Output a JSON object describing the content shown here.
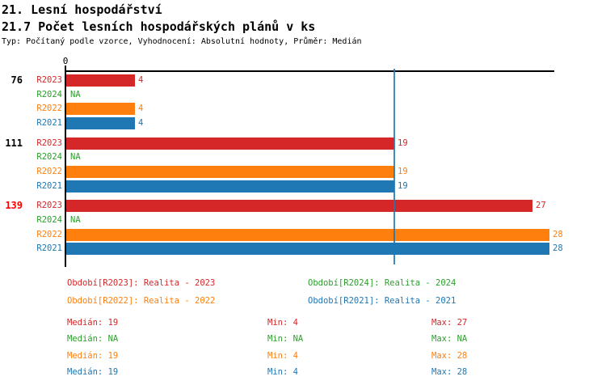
{
  "header": {
    "title_line1": "21. Lesní hospodářství",
    "title_line2": "21.7 Počet lesních hospodářských plánů v ks",
    "meta": "Typ: Počítaný podle vzorce, Vyhodnocení: Absolutní hodnoty, Průměr: Medián"
  },
  "colors": {
    "axis": "#000000",
    "background": "#ffffff",
    "median_line": "#1f77b4",
    "highlight_group": "#ff0000",
    "default_group": "#000000"
  },
  "chart_data": {
    "type": "bar",
    "orientation": "horizontal",
    "origin_label": "0",
    "na_text": "NA",
    "xlim": [
      0,
      28.3
    ],
    "median_line_value": 19,
    "series_order": [
      "R2023",
      "R2024",
      "R2022",
      "R2021"
    ],
    "series_colors": {
      "R2023": "#d62728",
      "R2024": "#2ca02c",
      "R2022": "#ff7f0e",
      "R2021": "#1f77b4"
    },
    "groups": [
      {
        "label": "76",
        "label_color": "#000000",
        "bars": [
          {
            "series": "R2023",
            "value": 4
          },
          {
            "series": "R2024",
            "value": null
          },
          {
            "series": "R2022",
            "value": 4
          },
          {
            "series": "R2021",
            "value": 4
          }
        ]
      },
      {
        "label": "111",
        "label_color": "#000000",
        "bars": [
          {
            "series": "R2023",
            "value": 19
          },
          {
            "series": "R2024",
            "value": null
          },
          {
            "series": "R2022",
            "value": 19
          },
          {
            "series": "R2021",
            "value": 19
          }
        ]
      },
      {
        "label": "139",
        "label_color": "#ff0000",
        "bars": [
          {
            "series": "R2023",
            "value": 27
          },
          {
            "series": "R2024",
            "value": null
          },
          {
            "series": "R2022",
            "value": 28
          },
          {
            "series": "R2021",
            "value": 28
          }
        ]
      }
    ]
  },
  "legend": {
    "items": [
      {
        "text": "Období[R2023]: Realita - 2023",
        "color": "#d62728"
      },
      {
        "text": "Období[R2024]: Realita - 2024",
        "color": "#2ca02c"
      },
      {
        "text": "Období[R2022]: Realita - 2022",
        "color": "#ff7f0e"
      },
      {
        "text": "Období[R2021]: Realita - 2021",
        "color": "#1f77b4"
      }
    ]
  },
  "stats": {
    "rows": [
      {
        "median": "Medián: 19",
        "min": "Min: 4",
        "max": "Max: 27",
        "color": "#d62728"
      },
      {
        "median": "Medián: NA",
        "min": "Min: NA",
        "max": "Max: NA",
        "color": "#2ca02c"
      },
      {
        "median": "Medián: 19",
        "min": "Min: 4",
        "max": "Max: 28",
        "color": "#ff7f0e"
      },
      {
        "median": "Medián: 19",
        "min": "Min: 4",
        "max": "Max: 28",
        "color": "#1f77b4"
      }
    ]
  }
}
